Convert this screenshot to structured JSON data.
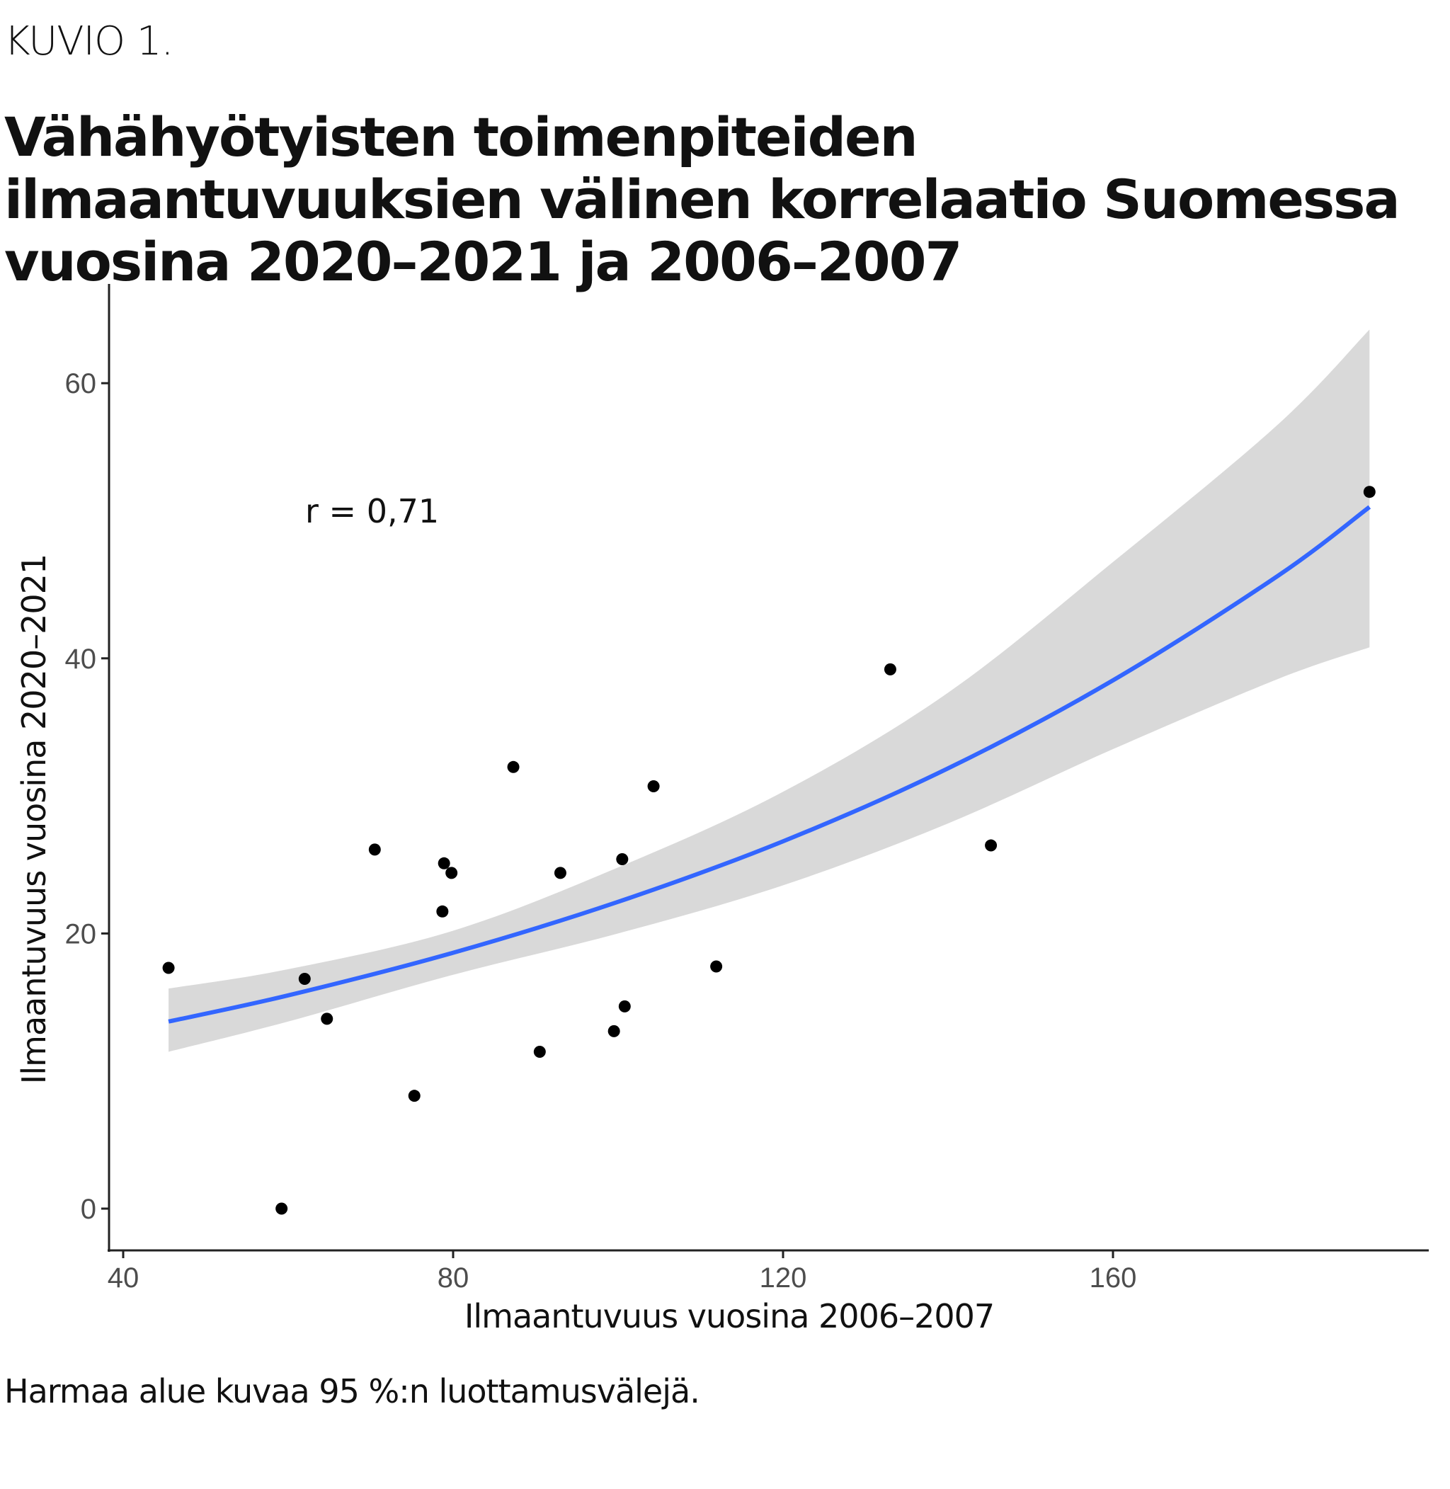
{
  "figure_label": "KUVIO 1.",
  "footer_note": "Harmaa alue kuvaa 95 %:n luottamusvälejä.",
  "colors": {
    "fit_line": "#3366ff",
    "ci_band": "#d9d9d9",
    "points": "#000000",
    "axis": "#222222"
  },
  "chart_data": {
    "type": "scatter",
    "title": "Vähähyötyisten toimenpiteiden ilmaantuvuuksien välinen korrelaatio Suomessa vuosina 2020–2021 ja 2006–2007",
    "xlabel": "Ilmaantuvuus vuosina 2006–2007",
    "ylabel": "Ilmaantuvuus vuosina 2020–2021",
    "xlim": [
      37,
      200
    ],
    "ylim": [
      -3.5,
      67.5
    ],
    "xticks": [
      40,
      80,
      120,
      160
    ],
    "yticks": [
      0,
      20,
      40,
      60
    ],
    "grid": false,
    "annotation": "r = 0,71",
    "points": [
      {
        "x": 45.5,
        "y": 17.5
      },
      {
        "x": 62.0,
        "y": 16.7
      },
      {
        "x": 64.7,
        "y": 13.8
      },
      {
        "x": 59.2,
        "y": 0.0
      },
      {
        "x": 70.5,
        "y": 26.1
      },
      {
        "x": 78.9,
        "y": 25.1
      },
      {
        "x": 79.8,
        "y": 24.4
      },
      {
        "x": 78.7,
        "y": 21.6
      },
      {
        "x": 75.3,
        "y": 8.2
      },
      {
        "x": 87.3,
        "y": 32.1
      },
      {
        "x": 90.5,
        "y": 11.4
      },
      {
        "x": 93.0,
        "y": 24.4
      },
      {
        "x": 100.5,
        "y": 25.4
      },
      {
        "x": 104.3,
        "y": 30.7
      },
      {
        "x": 100.8,
        "y": 14.7
      },
      {
        "x": 99.5,
        "y": 12.9
      },
      {
        "x": 111.9,
        "y": 17.6
      },
      {
        "x": 133.0,
        "y": 39.2
      },
      {
        "x": 145.2,
        "y": 26.4
      },
      {
        "x": 191.1,
        "y": 52.1
      }
    ],
    "fit": {
      "x": [
        45.5,
        60,
        80,
        100,
        120,
        140,
        160,
        180,
        191.1
      ],
      "y": [
        13.6,
        15.5,
        18.6,
        22.3,
        26.7,
        32.0,
        38.4,
        46.0,
        51.0
      ],
      "lower": [
        11.4,
        13.6,
        17.0,
        20.0,
        23.5,
        28.0,
        33.4,
        38.5,
        40.8
      ],
      "upper": [
        16.0,
        17.4,
        20.2,
        24.8,
        30.3,
        37.5,
        47.0,
        57.0,
        63.9
      ]
    }
  }
}
